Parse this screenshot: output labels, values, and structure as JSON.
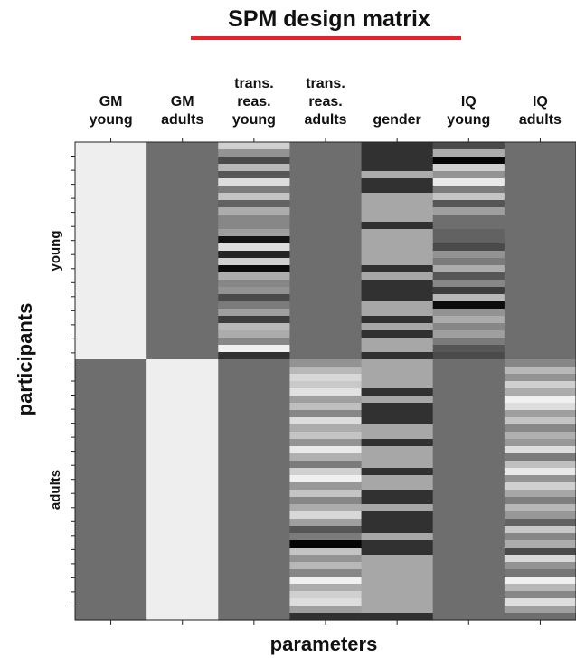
{
  "chart_data": {
    "type": "heatmap",
    "title": "SPM design matrix",
    "xlabel": "parameters",
    "ylabel": "participants",
    "accent_color": "#e8212a",
    "columns": [
      {
        "lines": [
          "GM",
          "young"
        ]
      },
      {
        "lines": [
          "GM",
          "adults"
        ]
      },
      {
        "lines": [
          "trans.",
          "reas.",
          "young"
        ]
      },
      {
        "lines": [
          "trans.",
          "reas.",
          "adults"
        ]
      },
      {
        "lines": [
          "gender"
        ]
      },
      {
        "lines": [
          "IQ",
          "young"
        ]
      },
      {
        "lines": [
          "IQ",
          "adults"
        ]
      }
    ],
    "row_groups": [
      {
        "label": "young",
        "rows": 30
      },
      {
        "label": "adults",
        "rows": 36
      }
    ],
    "grayscale_range": [
      0,
      1
    ],
    "column_values": [
      [
        0.97,
        0.97,
        0.97,
        0.97,
        0.97,
        0.97,
        0.97,
        0.97,
        0.97,
        0.97,
        0.97,
        0.97,
        0.97,
        0.97,
        0.97,
        0.97,
        0.97,
        0.97,
        0.97,
        0.97,
        0.97,
        0.97,
        0.97,
        0.97,
        0.97,
        0.97,
        0.97,
        0.97,
        0.97,
        0.97,
        0.45,
        0.45,
        0.45,
        0.45,
        0.45,
        0.45,
        0.45,
        0.45,
        0.45,
        0.45,
        0.45,
        0.45,
        0.45,
        0.45,
        0.45,
        0.45,
        0.45,
        0.45,
        0.45,
        0.45,
        0.45,
        0.45,
        0.45,
        0.45,
        0.45,
        0.45,
        0.45,
        0.45,
        0.45,
        0.45,
        0.45,
        0.45,
        0.45,
        0.45,
        0.45,
        0.45
      ],
      [
        0.45,
        0.45,
        0.45,
        0.45,
        0.45,
        0.45,
        0.45,
        0.45,
        0.45,
        0.45,
        0.45,
        0.45,
        0.45,
        0.45,
        0.45,
        0.45,
        0.45,
        0.45,
        0.45,
        0.45,
        0.45,
        0.45,
        0.45,
        0.45,
        0.45,
        0.45,
        0.45,
        0.45,
        0.45,
        0.45,
        0.97,
        0.97,
        0.97,
        0.97,
        0.97,
        0.97,
        0.97,
        0.97,
        0.97,
        0.97,
        0.97,
        0.97,
        0.97,
        0.97,
        0.97,
        0.97,
        0.97,
        0.97,
        0.97,
        0.97,
        0.97,
        0.97,
        0.97,
        0.97,
        0.97,
        0.97,
        0.97,
        0.97,
        0.97,
        0.97,
        0.97,
        0.97,
        0.97,
        0.97,
        0.97,
        0.97
      ],
      [
        0.85,
        0.6,
        0.3,
        0.75,
        0.35,
        0.9,
        0.5,
        0.8,
        0.4,
        0.7,
        0.55,
        0.55,
        0.65,
        0.08,
        0.9,
        0.15,
        0.85,
        0.05,
        0.7,
        0.55,
        0.6,
        0.3,
        0.5,
        0.65,
        0.25,
        0.75,
        0.7,
        0.55,
        0.98,
        0.2,
        0.45,
        0.45,
        0.45,
        0.45,
        0.45,
        0.45,
        0.45,
        0.45,
        0.45,
        0.45,
        0.45,
        0.45,
        0.45,
        0.45,
        0.45,
        0.45,
        0.45,
        0.45,
        0.45,
        0.45,
        0.45,
        0.45,
        0.45,
        0.45,
        0.45,
        0.45,
        0.45,
        0.45,
        0.45,
        0.45,
        0.45,
        0.45,
        0.45,
        0.45,
        0.45,
        0.45
      ],
      [
        0.45,
        0.45,
        0.45,
        0.45,
        0.45,
        0.45,
        0.45,
        0.45,
        0.45,
        0.45,
        0.45,
        0.45,
        0.45,
        0.45,
        0.45,
        0.45,
        0.45,
        0.45,
        0.45,
        0.45,
        0.45,
        0.45,
        0.45,
        0.45,
        0.45,
        0.45,
        0.45,
        0.45,
        0.45,
        0.45,
        0.6,
        0.75,
        0.88,
        0.82,
        0.92,
        0.65,
        0.78,
        0.55,
        0.9,
        0.7,
        0.8,
        0.6,
        0.95,
        0.72,
        0.5,
        0.85,
        0.98,
        0.62,
        0.8,
        0.55,
        0.7,
        0.88,
        0.65,
        0.35,
        0.5,
        0.02,
        0.8,
        0.6,
        0.75,
        0.55,
        0.98,
        0.7,
        0.85,
        0.9,
        0.65,
        0.2
      ],
      [
        0.2,
        0.2,
        0.2,
        0.2,
        0.7,
        0.2,
        0.2,
        0.68,
        0.68,
        0.68,
        0.68,
        0.2,
        0.68,
        0.68,
        0.68,
        0.68,
        0.68,
        0.2,
        0.68,
        0.2,
        0.2,
        0.2,
        0.68,
        0.68,
        0.2,
        0.68,
        0.2,
        0.68,
        0.68,
        0.2,
        0.68,
        0.68,
        0.68,
        0.68,
        0.2,
        0.68,
        0.2,
        0.2,
        0.2,
        0.68,
        0.68,
        0.2,
        0.68,
        0.68,
        0.68,
        0.2,
        0.68,
        0.68,
        0.2,
        0.2,
        0.68,
        0.2,
        0.2,
        0.2,
        0.68,
        0.2,
        0.2,
        0.68,
        0.68,
        0.68,
        0.68,
        0.68,
        0.68,
        0.68,
        0.68,
        0.2
      ],
      [
        0.3,
        0.7,
        0.02,
        0.85,
        0.6,
        0.95,
        0.5,
        0.8,
        0.35,
        0.65,
        0.45,
        0.45,
        0.4,
        0.4,
        0.3,
        0.6,
        0.5,
        0.7,
        0.35,
        0.55,
        0.25,
        0.75,
        0.05,
        0.6,
        0.7,
        0.55,
        0.65,
        0.5,
        0.35,
        0.3,
        0.45,
        0.45,
        0.45,
        0.45,
        0.45,
        0.45,
        0.45,
        0.45,
        0.45,
        0.45,
        0.45,
        0.45,
        0.45,
        0.45,
        0.45,
        0.45,
        0.45,
        0.45,
        0.45,
        0.45,
        0.45,
        0.45,
        0.45,
        0.45,
        0.45,
        0.45,
        0.45,
        0.45,
        0.45,
        0.45,
        0.45,
        0.45,
        0.45,
        0.45,
        0.45,
        0.45
      ],
      [
        0.45,
        0.45,
        0.45,
        0.45,
        0.45,
        0.45,
        0.45,
        0.45,
        0.45,
        0.45,
        0.45,
        0.45,
        0.45,
        0.45,
        0.45,
        0.45,
        0.45,
        0.45,
        0.45,
        0.45,
        0.45,
        0.45,
        0.45,
        0.45,
        0.45,
        0.45,
        0.45,
        0.45,
        0.45,
        0.45,
        0.55,
        0.75,
        0.6,
        0.85,
        0.7,
        0.98,
        0.9,
        0.65,
        0.8,
        0.55,
        0.72,
        0.62,
        0.9,
        0.5,
        0.78,
        0.95,
        0.6,
        0.85,
        0.68,
        0.52,
        0.75,
        0.62,
        0.4,
        0.82,
        0.55,
        0.7,
        0.3,
        0.88,
        0.6,
        0.48,
        0.98,
        0.75,
        0.55,
        0.9,
        0.65,
        0.45
      ]
    ]
  }
}
